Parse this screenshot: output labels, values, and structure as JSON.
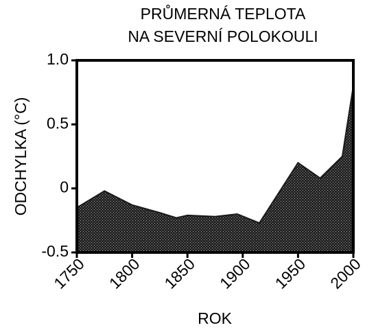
{
  "chart_data": {
    "type": "area",
    "title": [
      "PRŮMERNÁ TEPLOTA",
      "NA SEVERNÍ POLOKOULI"
    ],
    "x_label": "ROK",
    "y_label": "ODCHYLKA (°C)",
    "x": [
      1750,
      1775,
      1800,
      1825,
      1840,
      1850,
      1875,
      1895,
      1915,
      1950,
      1970,
      1990,
      2000
    ],
    "values": [
      -0.15,
      -0.02,
      -0.13,
      -0.19,
      -0.23,
      -0.21,
      -0.22,
      -0.2,
      -0.27,
      0.2,
      0.08,
      0.25,
      0.8
    ],
    "color": "#1a1a1a",
    "xlim": [
      1750,
      2000
    ],
    "xticks": [
      1750,
      1800,
      1850,
      1900,
      1950,
      2000
    ],
    "ylim": [
      -0.5,
      1.0
    ],
    "yticks": [
      -0.5,
      0,
      0.5,
      {
        "value": 1.0,
        "label": "1.0"
      }
    ],
    "grid": false
  }
}
